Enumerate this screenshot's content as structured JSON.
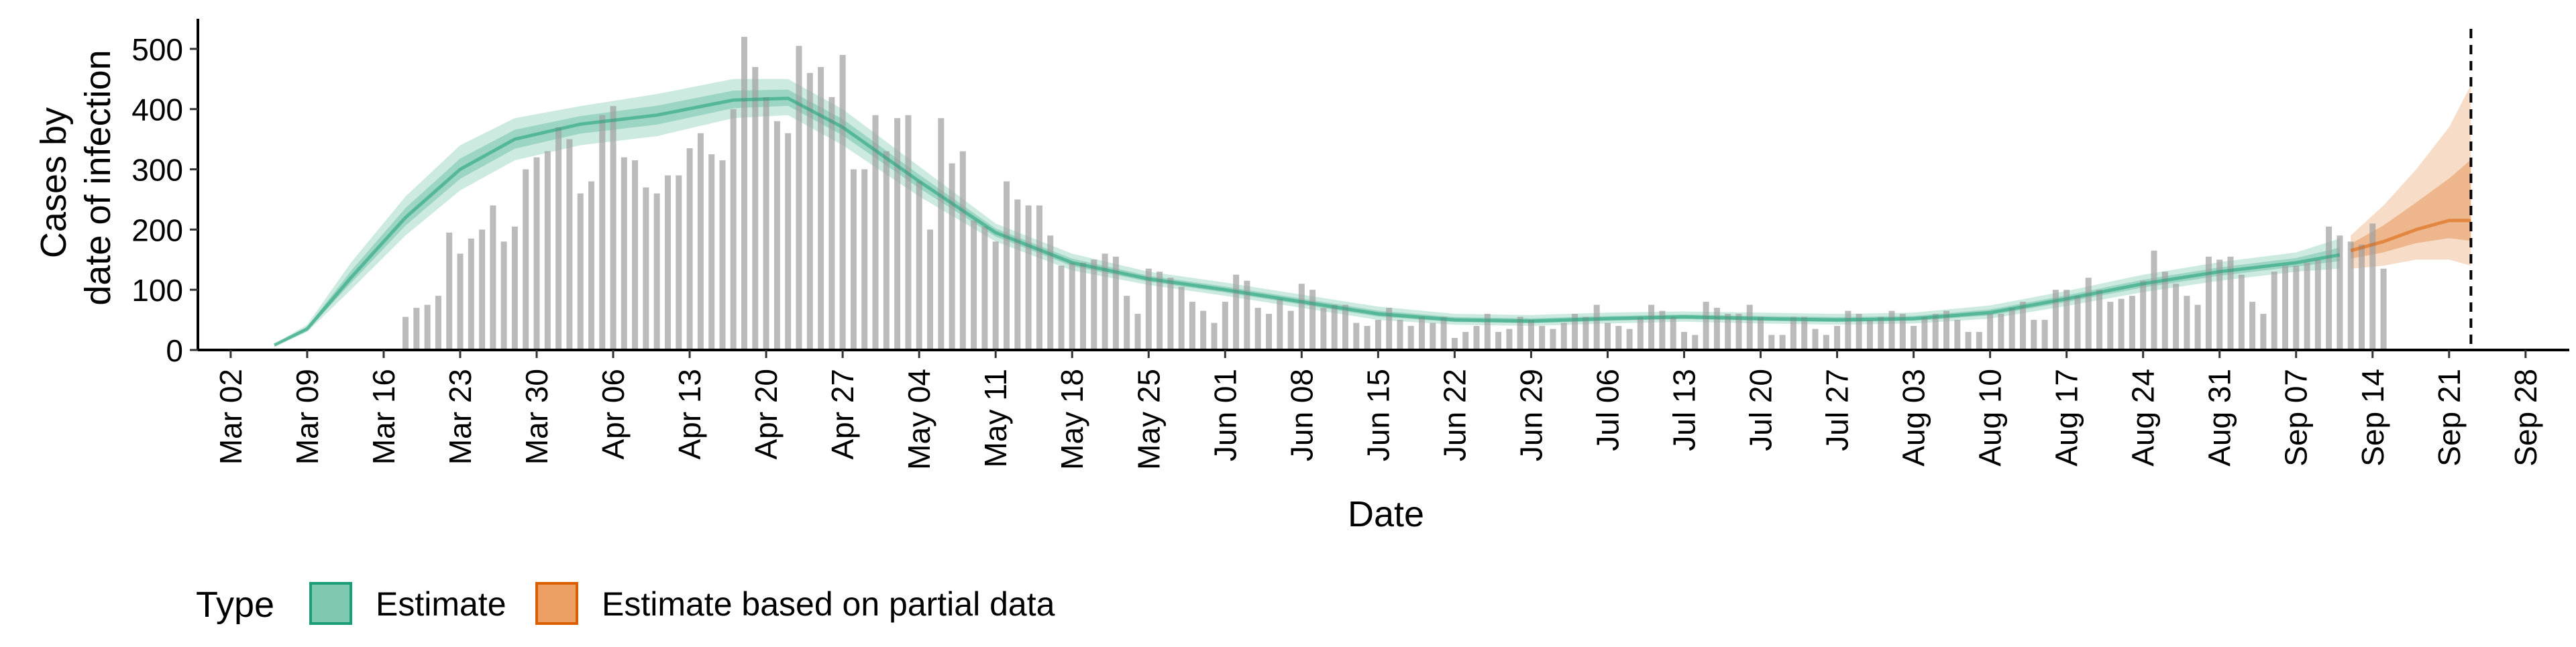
{
  "chart_data": {
    "type": "bar",
    "xlabel": "Date",
    "ylabel_lines": [
      "Cases by",
      "date of infection"
    ],
    "ylim": [
      0,
      550
    ],
    "yticks": [
      0,
      100,
      200,
      300,
      400,
      500
    ],
    "x_range": [
      "2020-02-28",
      "2020-10-02"
    ],
    "xtick_dates": [
      "2020-03-02",
      "2020-03-09",
      "2020-03-16",
      "2020-03-23",
      "2020-03-30",
      "2020-04-06",
      "2020-04-13",
      "2020-04-20",
      "2020-04-27",
      "2020-05-04",
      "2020-05-11",
      "2020-05-18",
      "2020-05-25",
      "2020-06-01",
      "2020-06-08",
      "2020-06-15",
      "2020-06-22",
      "2020-06-29",
      "2020-07-06",
      "2020-07-13",
      "2020-07-20",
      "2020-07-27",
      "2020-08-03",
      "2020-08-10",
      "2020-08-17",
      "2020-08-24",
      "2020-08-31",
      "2020-09-07",
      "2020-09-14",
      "2020-09-21",
      "2020-09-28"
    ],
    "xtick_labels": [
      "Mar 02",
      "Mar 09",
      "Mar 16",
      "Mar 23",
      "Mar 30",
      "Apr 06",
      "Apr 13",
      "Apr 20",
      "Apr 27",
      "May 04",
      "May 11",
      "May 18",
      "May 25",
      "Jun 01",
      "Jun 08",
      "Jun 15",
      "Jun 22",
      "Jun 29",
      "Jul 06",
      "Jul 13",
      "Jul 20",
      "Jul 27",
      "Aug 03",
      "Aug 10",
      "Aug 17",
      "Aug 24",
      "Aug 31",
      "Sep 07",
      "Sep 14",
      "Sep 21",
      "Sep 28"
    ],
    "reported_cases": {
      "start_date": "2020-03-18",
      "values": [
        55,
        70,
        75,
        90,
        195,
        160,
        185,
        200,
        240,
        180,
        205,
        300,
        320,
        330,
        370,
        350,
        260,
        280,
        390,
        405,
        320,
        315,
        270,
        260,
        290,
        290,
        335,
        360,
        325,
        315,
        400,
        520,
        470,
        420,
        380,
        360,
        505,
        460,
        470,
        420,
        490,
        300,
        300,
        390,
        330,
        385,
        390,
        280,
        200,
        385,
        310,
        330,
        215,
        205,
        180,
        280,
        250,
        240,
        240,
        190,
        140,
        145,
        145,
        150,
        160,
        155,
        90,
        60,
        135,
        130,
        120,
        105,
        80,
        65,
        45,
        80,
        125,
        115,
        70,
        60,
        85,
        65,
        110,
        100,
        70,
        75,
        75,
        45,
        40,
        50,
        70,
        50,
        40,
        55,
        45,
        55,
        20,
        30,
        40,
        60,
        30,
        35,
        55,
        50,
        40,
        35,
        45,
        60,
        55,
        75,
        45,
        40,
        35,
        55,
        75,
        65,
        55,
        30,
        25,
        80,
        70,
        60,
        60,
        75,
        55,
        25,
        25,
        55,
        55,
        35,
        25,
        40,
        65,
        60,
        50,
        55,
        65,
        60,
        40,
        55,
        60,
        65,
        50,
        30,
        30,
        60,
        60,
        70,
        80,
        50,
        50,
        100,
        100,
        90,
        120,
        100,
        80,
        85,
        90,
        115,
        165,
        130,
        110,
        90,
        75,
        155,
        150,
        155,
        125,
        80,
        60,
        130,
        140,
        140,
        145,
        150,
        205,
        190,
        180,
        175,
        210,
        135
      ]
    },
    "estimate": {
      "name": "Estimate",
      "color": "#1b9e77",
      "start_date": "2020-03-06",
      "end_date": "2020-09-11",
      "dates": [
        "2020-03-06",
        "2020-03-09",
        "2020-03-13",
        "2020-03-18",
        "2020-03-23",
        "2020-03-28",
        "2020-04-03",
        "2020-04-10",
        "2020-04-17",
        "2020-04-22",
        "2020-04-27",
        "2020-05-04",
        "2020-05-11",
        "2020-05-18",
        "2020-05-25",
        "2020-06-01",
        "2020-06-08",
        "2020-06-15",
        "2020-06-22",
        "2020-06-29",
        "2020-07-06",
        "2020-07-13",
        "2020-07-20",
        "2020-07-27",
        "2020-08-03",
        "2020-08-10",
        "2020-08-17",
        "2020-08-24",
        "2020-08-31",
        "2020-09-07",
        "2020-09-11"
      ],
      "median": [
        8,
        35,
        120,
        220,
        300,
        350,
        375,
        390,
        415,
        418,
        370,
        280,
        195,
        145,
        118,
        100,
        80,
        60,
        50,
        48,
        52,
        55,
        52,
        50,
        52,
        62,
        85,
        110,
        130,
        145,
        158
      ],
      "lower90": [
        6,
        30,
        100,
        190,
        265,
        315,
        340,
        355,
        385,
        390,
        340,
        255,
        180,
        132,
        108,
        90,
        70,
        50,
        42,
        40,
        44,
        47,
        44,
        42,
        44,
        52,
        73,
        96,
        115,
        130,
        135
      ],
      "upper90": [
        10,
        42,
        145,
        255,
        340,
        385,
        405,
        425,
        450,
        450,
        400,
        305,
        210,
        160,
        130,
        112,
        92,
        72,
        60,
        58,
        62,
        64,
        62,
        60,
        62,
        74,
        98,
        125,
        146,
        162,
        185
      ]
    },
    "partial_estimate": {
      "name": "Estimate based on partial data",
      "color": "#d95f02",
      "dates": [
        "2020-09-12",
        "2020-09-15",
        "2020-09-18",
        "2020-09-21",
        "2020-09-23"
      ],
      "median": [
        165,
        180,
        200,
        215,
        215
      ],
      "lower90": [
        135,
        140,
        150,
        150,
        140
      ],
      "upper90": [
        190,
        240,
        300,
        370,
        440
      ]
    },
    "vline_date": "2020-09-23",
    "legend": {
      "title": "Type",
      "position": "bottom-left",
      "items": [
        {
          "label": "Estimate",
          "fill": "#7fc9b0",
          "stroke": "#1b9e77"
        },
        {
          "label": "Estimate based on partial data",
          "fill": "#ec9f62",
          "stroke": "#d95f02"
        }
      ]
    },
    "grid": false
  }
}
